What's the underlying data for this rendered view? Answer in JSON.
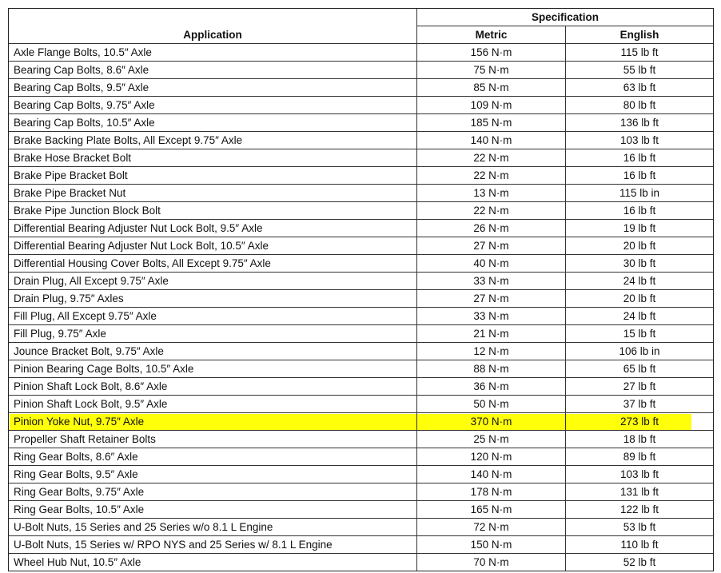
{
  "header": {
    "application": "Application",
    "specification": "Specification",
    "metric": "Metric",
    "english": "English"
  },
  "highlight_color": "#ffff0a",
  "rows": [
    {
      "application": "Axle Flange Bolts, 10.5″ Axle",
      "metric": "156 N·m",
      "english": "115 lb ft"
    },
    {
      "application": "Bearing Cap Bolts, 8.6″ Axle",
      "metric": "75 N·m",
      "english": "55 lb ft"
    },
    {
      "application": "Bearing Cap Bolts, 9.5″ Axle",
      "metric": "85 N·m",
      "english": "63 lb ft"
    },
    {
      "application": "Bearing Cap Bolts, 9.75″ Axle",
      "metric": "109 N·m",
      "english": "80 lb ft"
    },
    {
      "application": "Bearing Cap Bolts, 10.5″ Axle",
      "metric": "185 N·m",
      "english": "136 lb ft"
    },
    {
      "application": "Brake Backing Plate Bolts, All Except 9.75″ Axle",
      "metric": "140 N·m",
      "english": "103 lb ft"
    },
    {
      "application": "Brake Hose Bracket Bolt",
      "metric": "22 N·m",
      "english": "16 lb ft"
    },
    {
      "application": "Brake Pipe Bracket Bolt",
      "metric": "22 N·m",
      "english": "16 lb ft"
    },
    {
      "application": "Brake Pipe Bracket Nut",
      "metric": "13 N·m",
      "english": "115 lb in"
    },
    {
      "application": "Brake Pipe Junction Block Bolt",
      "metric": "22 N·m",
      "english": "16 lb ft"
    },
    {
      "application": "Differential Bearing Adjuster Nut Lock Bolt, 9.5″ Axle",
      "metric": "26 N·m",
      "english": "19 lb ft"
    },
    {
      "application": "Differential Bearing Adjuster Nut Lock Bolt, 10.5″ Axle",
      "metric": "27 N·m",
      "english": "20 lb ft"
    },
    {
      "application": "Differential Housing Cover Bolts, All Except 9.75″ Axle",
      "metric": "40 N·m",
      "english": "30 lb ft"
    },
    {
      "application": "Drain Plug, All Except 9.75″ Axle",
      "metric": "33 N·m",
      "english": "24 lb ft"
    },
    {
      "application": "Drain Plug, 9.75″ Axles",
      "metric": "27 N·m",
      "english": "20 lb ft"
    },
    {
      "application": "Fill Plug, All Except 9.75″ Axle",
      "metric": "33 N·m",
      "english": "24 lb ft"
    },
    {
      "application": "Fill Plug, 9.75″ Axle",
      "metric": "21 N·m",
      "english": "15 lb ft"
    },
    {
      "application": "Jounce Bracket Bolt, 9.75″ Axle",
      "metric": "12 N·m",
      "english": "106 lb in"
    },
    {
      "application": "Pinion Bearing Cage Bolts, 10.5″ Axle",
      "metric": "88 N·m",
      "english": "65 lb ft"
    },
    {
      "application": "Pinion Shaft Lock Bolt, 8.6″ Axle",
      "metric": "36 N·m",
      "english": "27 lb ft"
    },
    {
      "application": "Pinion Shaft Lock Bolt, 9.5″ Axle",
      "metric": "50 N·m",
      "english": "37 lb ft"
    },
    {
      "application": "Pinion Yoke Nut, 9.75″ Axle",
      "metric": "370 N·m",
      "english": "273 lb ft",
      "highlighted": true
    },
    {
      "application": "Propeller Shaft Retainer Bolts",
      "metric": "25 N·m",
      "english": "18 lb ft"
    },
    {
      "application": "Ring Gear Bolts, 8.6″ Axle",
      "metric": "120 N·m",
      "english": "89 lb ft"
    },
    {
      "application": "Ring Gear Bolts, 9.5″ Axle",
      "metric": "140 N·m",
      "english": "103 lb ft"
    },
    {
      "application": "Ring Gear Bolts, 9.75″ Axle",
      "metric": "178 N·m",
      "english": "131 lb ft"
    },
    {
      "application": "Ring Gear Bolts, 10.5″ Axle",
      "metric": "165 N·m",
      "english": "122 lb ft"
    },
    {
      "application": "U-Bolt Nuts, 15 Series and 25 Series w/o 8.1 L Engine",
      "metric": "72 N·m",
      "english": "53 lb ft"
    },
    {
      "application": "U-Bolt Nuts, 15 Series w/ RPO NYS and 25 Series w/ 8.1 L Engine",
      "metric": "150 N·m",
      "english": "110 lb ft"
    },
    {
      "application": "Wheel Hub Nut, 10.5″ Axle",
      "metric": "70 N·m",
      "english": "52 lb ft"
    }
  ]
}
